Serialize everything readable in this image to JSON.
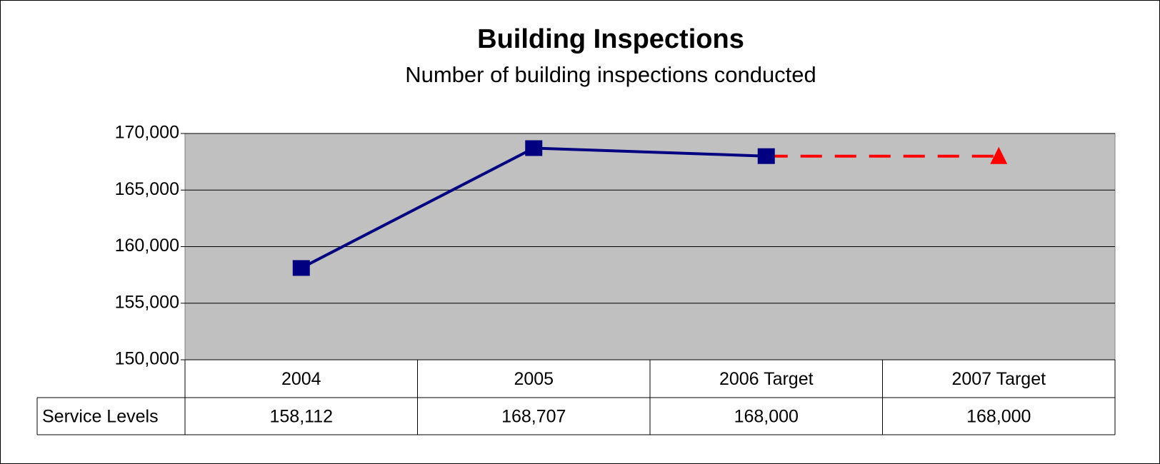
{
  "chart_data": {
    "type": "line",
    "title": "Building Inspections",
    "subtitle": "Number of building inspections conducted",
    "categories": [
      "2004",
      "2005",
      "2006 Target",
      "2007 Target"
    ],
    "series": [
      {
        "name": "Service Levels",
        "color": "#000080",
        "target_color": "#ff0000",
        "target_start": 2,
        "values": [
          158112,
          168707,
          168000,
          168000
        ],
        "value_labels": [
          "158,112",
          "168,707",
          "168,000",
          "168,000"
        ]
      }
    ],
    "ylim": [
      150000,
      170000
    ],
    "yticks": [
      {
        "value": 150000,
        "label": "150,000"
      },
      {
        "value": 155000,
        "label": "155,000"
      },
      {
        "value": 160000,
        "label": "160,000"
      },
      {
        "value": 165000,
        "label": "165,000"
      },
      {
        "value": 170000,
        "label": "170,000"
      }
    ],
    "grid": true,
    "plot_background": "#c0c0c0"
  }
}
